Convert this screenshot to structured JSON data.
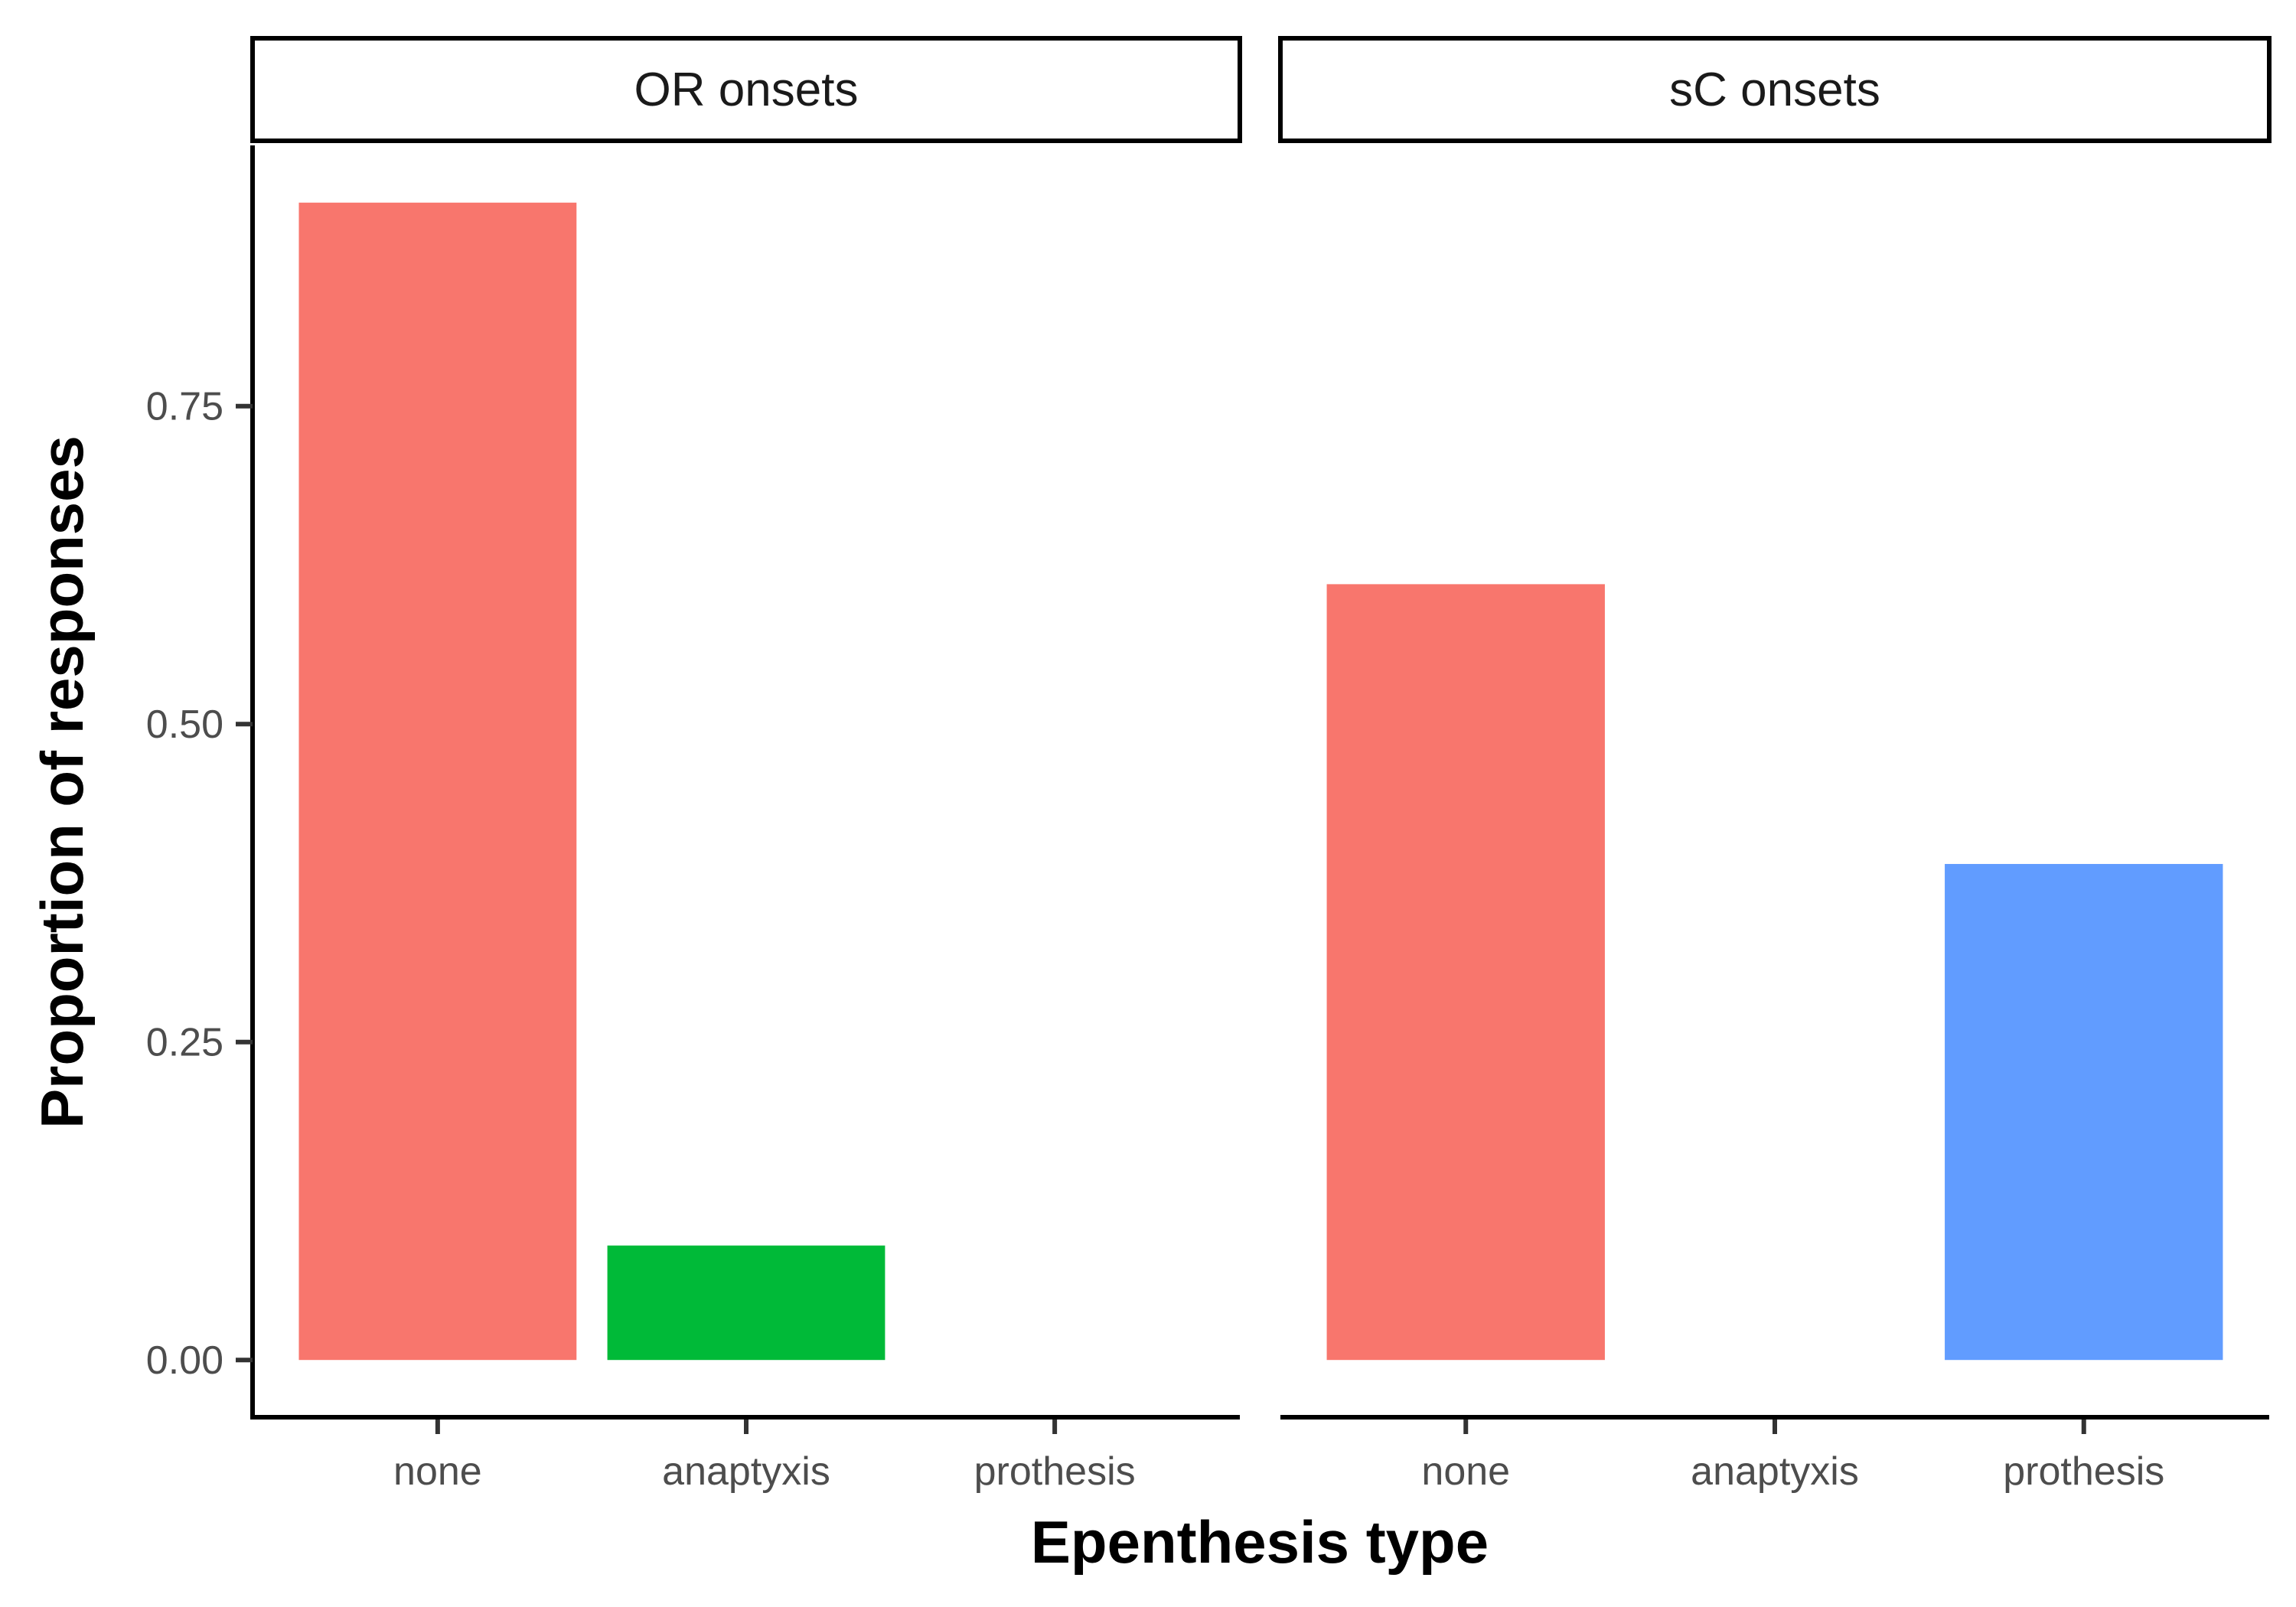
{
  "chart_data": {
    "type": "bar",
    "xlabel": "Epenthesis type",
    "ylabel": "Proportion of responses",
    "ylim": [
      -0.045,
      0.955
    ],
    "yticks": [
      0,
      0.25,
      0.5,
      0.75
    ],
    "ytick_labels": [
      "0.00",
      "0.25",
      "0.50",
      "0.75"
    ],
    "categories": [
      "none",
      "anaptyxis",
      "prothesis"
    ],
    "colors": {
      "none": "#F8766D",
      "anaptyxis": "#00BA38",
      "prothesis": "#619CFF"
    },
    "grid": false,
    "legend": "none",
    "facets": [
      {
        "label": "OR onsets",
        "values": [
          0.91,
          0.09,
          0
        ]
      },
      {
        "label": "sC onsets",
        "values": [
          0.61,
          0,
          0.39
        ]
      }
    ]
  }
}
